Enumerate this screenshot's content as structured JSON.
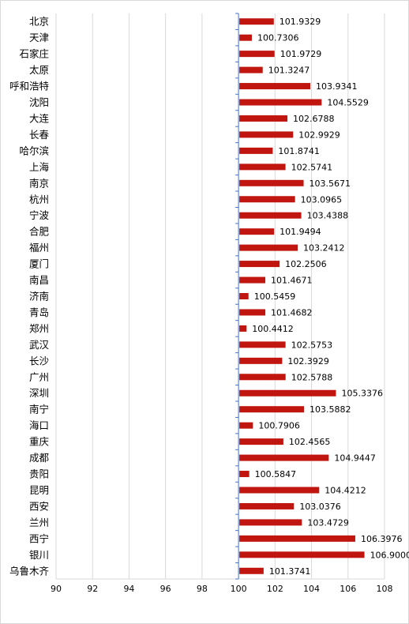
{
  "chart_data": {
    "type": "bar",
    "orientation": "horizontal",
    "title": "",
    "xlabel": "",
    "ylabel": "",
    "xlim": [
      90,
      108
    ],
    "x_ticks": [
      90,
      92,
      94,
      96,
      98,
      100,
      102,
      104,
      106,
      108
    ],
    "x_tick_labels": [
      "90",
      "92",
      "94",
      "96",
      "98",
      "100",
      "102",
      "104",
      "106",
      "108"
    ],
    "baseline": 100,
    "grid": "vertical",
    "legend": "none",
    "bar_color": "#c0160f",
    "categories": [
      "北京",
      "天津",
      "石家庄",
      "太原",
      "呼和浩特",
      "沈阳",
      "大连",
      "长春",
      "哈尔滨",
      "上海",
      "南京",
      "杭州",
      "宁波",
      "合肥",
      "福州",
      "厦门",
      "南昌",
      "济南",
      "青岛",
      "郑州",
      "武汉",
      "长沙",
      "广州",
      "深圳",
      "南宁",
      "海口",
      "重庆",
      "成都",
      "贵阳",
      "昆明",
      "西安",
      "兰州",
      "西宁",
      "银川",
      "乌鲁木齐"
    ],
    "values": [
      101.9329,
      100.7306,
      101.9729,
      101.3247,
      103.9341,
      104.5529,
      102.6788,
      102.9929,
      101.8741,
      102.5741,
      103.5671,
      103.0965,
      103.4388,
      101.9494,
      103.2412,
      102.2506,
      101.4671,
      100.5459,
      101.4682,
      100.4412,
      102.5753,
      102.3929,
      102.5788,
      105.3376,
      103.5882,
      100.7906,
      102.4565,
      104.9447,
      100.5847,
      104.4212,
      103.0376,
      103.4729,
      106.3976,
      106.9,
      101.3741
    ],
    "value_labels": [
      "101.9329",
      "100.7306",
      "101.9729",
      "101.3247",
      "103.9341",
      "104.5529",
      "102.6788",
      "102.9929",
      "101.8741",
      "102.5741",
      "103.5671",
      "103.0965",
      "103.4388",
      "101.9494",
      "103.2412",
      "102.2506",
      "101.4671",
      "100.5459",
      "101.4682",
      "100.4412",
      "102.5753",
      "102.3929",
      "102.5788",
      "105.3376",
      "103.5882",
      "100.7906",
      "102.4565",
      "104.9447",
      "100.5847",
      "104.4212",
      "103.0376",
      "103.4729",
      "106.3976",
      "106.9000",
      "101.3741"
    ]
  }
}
